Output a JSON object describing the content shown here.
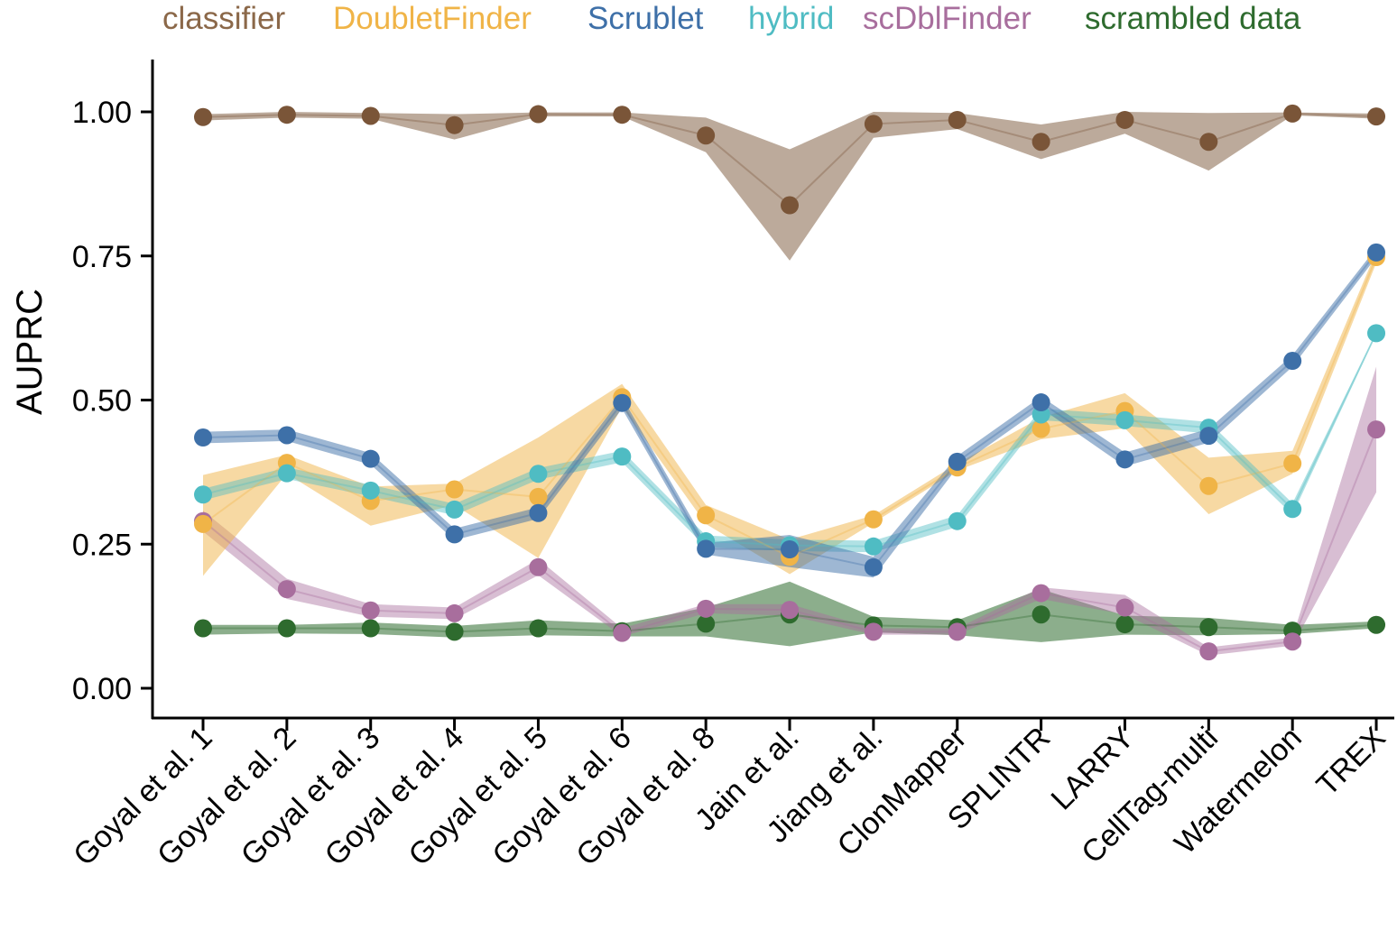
{
  "chart_data": {
    "type": "line",
    "title": "",
    "xlabel": "",
    "ylabel": "AUPRC",
    "ylim": [
      0,
      1.05
    ],
    "yticks": [
      "0.00",
      "0.25",
      "0.50",
      "0.75",
      "1.00"
    ],
    "ytick_values": [
      0,
      0.25,
      0.5,
      0.75,
      1.0
    ],
    "grid": false,
    "legend_position": "top",
    "categories": [
      "Goyal et al. 1",
      "Goyal et al. 2",
      "Goyal et al. 3",
      "Goyal et al. 4",
      "Goyal et al. 5",
      "Goyal et al. 6",
      "Goyal et al. 8",
      "Jain et al.",
      "Jiang et al.",
      "ClonMapper",
      "SPLINTR",
      "LARRY",
      "CellTag-multi",
      "Watermelon",
      "TREX"
    ],
    "series": [
      {
        "name": "scrambled data",
        "color": "#2e6b2e",
        "values": [
          0.104,
          0.104,
          0.104,
          0.098,
          0.104,
          0.099,
          0.112,
          0.128,
          0.109,
          0.106,
          0.128,
          0.111,
          0.106,
          0.1,
          0.11
        ],
        "lower": [
          0.093,
          0.095,
          0.094,
          0.088,
          0.092,
          0.09,
          0.09,
          0.073,
          0.097,
          0.092,
          0.08,
          0.093,
          0.092,
          0.094,
          0.104
        ],
        "upper": [
          0.11,
          0.11,
          0.114,
          0.108,
          0.118,
          0.112,
          0.14,
          0.185,
          0.124,
          0.118,
          0.172,
          0.126,
          0.122,
          0.11,
          0.116
        ]
      },
      {
        "name": "scDblFinder",
        "color": "#a86e9d",
        "values": [
          0.29,
          0.172,
          0.135,
          0.13,
          0.21,
          0.096,
          0.138,
          0.136,
          0.098,
          0.098,
          0.165,
          0.14,
          0.064,
          0.081,
          0.449
        ],
        "lower": [
          0.272,
          0.155,
          0.124,
          0.12,
          0.196,
          0.09,
          0.13,
          0.126,
          0.093,
          0.093,
          0.155,
          0.128,
          0.057,
          0.074,
          0.34
        ],
        "upper": [
          0.308,
          0.19,
          0.146,
          0.14,
          0.224,
          0.104,
          0.146,
          0.146,
          0.104,
          0.104,
          0.175,
          0.162,
          0.071,
          0.088,
          0.558
        ]
      },
      {
        "name": "DoubletFinder",
        "color": "#f0b447",
        "values": [
          0.285,
          0.391,
          0.325,
          0.345,
          0.332,
          0.505,
          0.3,
          0.228,
          0.293,
          0.383,
          0.45,
          0.481,
          0.351,
          0.39,
          0.748
        ],
        "lower": [
          0.195,
          0.372,
          0.282,
          0.318,
          0.226,
          0.488,
          0.285,
          0.198,
          0.287,
          0.378,
          0.432,
          0.451,
          0.302,
          0.372,
          0.738
        ],
        "upper": [
          0.37,
          0.405,
          0.35,
          0.355,
          0.435,
          0.528,
          0.318,
          0.258,
          0.3,
          0.39,
          0.47,
          0.512,
          0.4,
          0.412,
          0.758
        ]
      },
      {
        "name": "hybrid",
        "color": "#4fbcc3",
        "values": [
          0.336,
          0.373,
          0.343,
          0.31,
          0.372,
          0.402,
          0.255,
          0.248,
          0.246,
          0.29,
          0.475,
          0.465,
          0.452,
          0.311,
          0.616
        ],
        "lower": [
          0.326,
          0.363,
          0.333,
          0.3,
          0.362,
          0.392,
          0.245,
          0.238,
          0.236,
          0.28,
          0.465,
          0.455,
          0.442,
          0.301,
          0.614
        ],
        "upper": [
          0.346,
          0.383,
          0.353,
          0.32,
          0.382,
          0.412,
          0.265,
          0.258,
          0.256,
          0.3,
          0.485,
          0.475,
          0.462,
          0.321,
          0.618
        ]
      },
      {
        "name": "Scrublet",
        "color": "#3e70a8",
        "values": [
          0.435,
          0.439,
          0.398,
          0.267,
          0.304,
          0.495,
          0.242,
          0.241,
          0.21,
          0.393,
          0.496,
          0.397,
          0.438,
          0.568,
          0.756
        ],
        "lower": [
          0.425,
          0.429,
          0.388,
          0.257,
          0.294,
          0.485,
          0.232,
          0.21,
          0.192,
          0.383,
          0.486,
          0.385,
          0.426,
          0.558,
          0.748
        ],
        "upper": [
          0.445,
          0.449,
          0.408,
          0.277,
          0.314,
          0.505,
          0.252,
          0.266,
          0.228,
          0.403,
          0.506,
          0.409,
          0.45,
          0.578,
          0.764
        ]
      },
      {
        "name": "classifier",
        "color": "#7a5538",
        "values": [
          0.991,
          0.995,
          0.993,
          0.977,
          0.996,
          0.995,
          0.959,
          0.838,
          0.979,
          0.986,
          0.948,
          0.986,
          0.948,
          0.997,
          0.992
        ],
        "lower": [
          0.985,
          0.99,
          0.988,
          0.952,
          0.992,
          0.992,
          0.93,
          0.742,
          0.955,
          0.97,
          0.918,
          0.962,
          0.898,
          0.994,
          0.988
        ],
        "upper": [
          0.996,
          1.0,
          0.998,
          0.996,
          0.999,
          0.999,
          0.99,
          0.935,
          1.0,
          0.998,
          0.978,
          1.0,
          0.998,
          0.999,
          0.997
        ]
      }
    ],
    "legend": [
      {
        "label": "classifier",
        "color": "#8b6849"
      },
      {
        "label": "DoubletFinder",
        "color": "#f0b447"
      },
      {
        "label": "Scrublet",
        "color": "#3e70a8"
      },
      {
        "label": "hybrid",
        "color": "#4fbcc3"
      },
      {
        "label": "scDblFinder",
        "color": "#a86e9d"
      },
      {
        "label": "scrambled data",
        "color": "#2e6b2e"
      }
    ]
  }
}
